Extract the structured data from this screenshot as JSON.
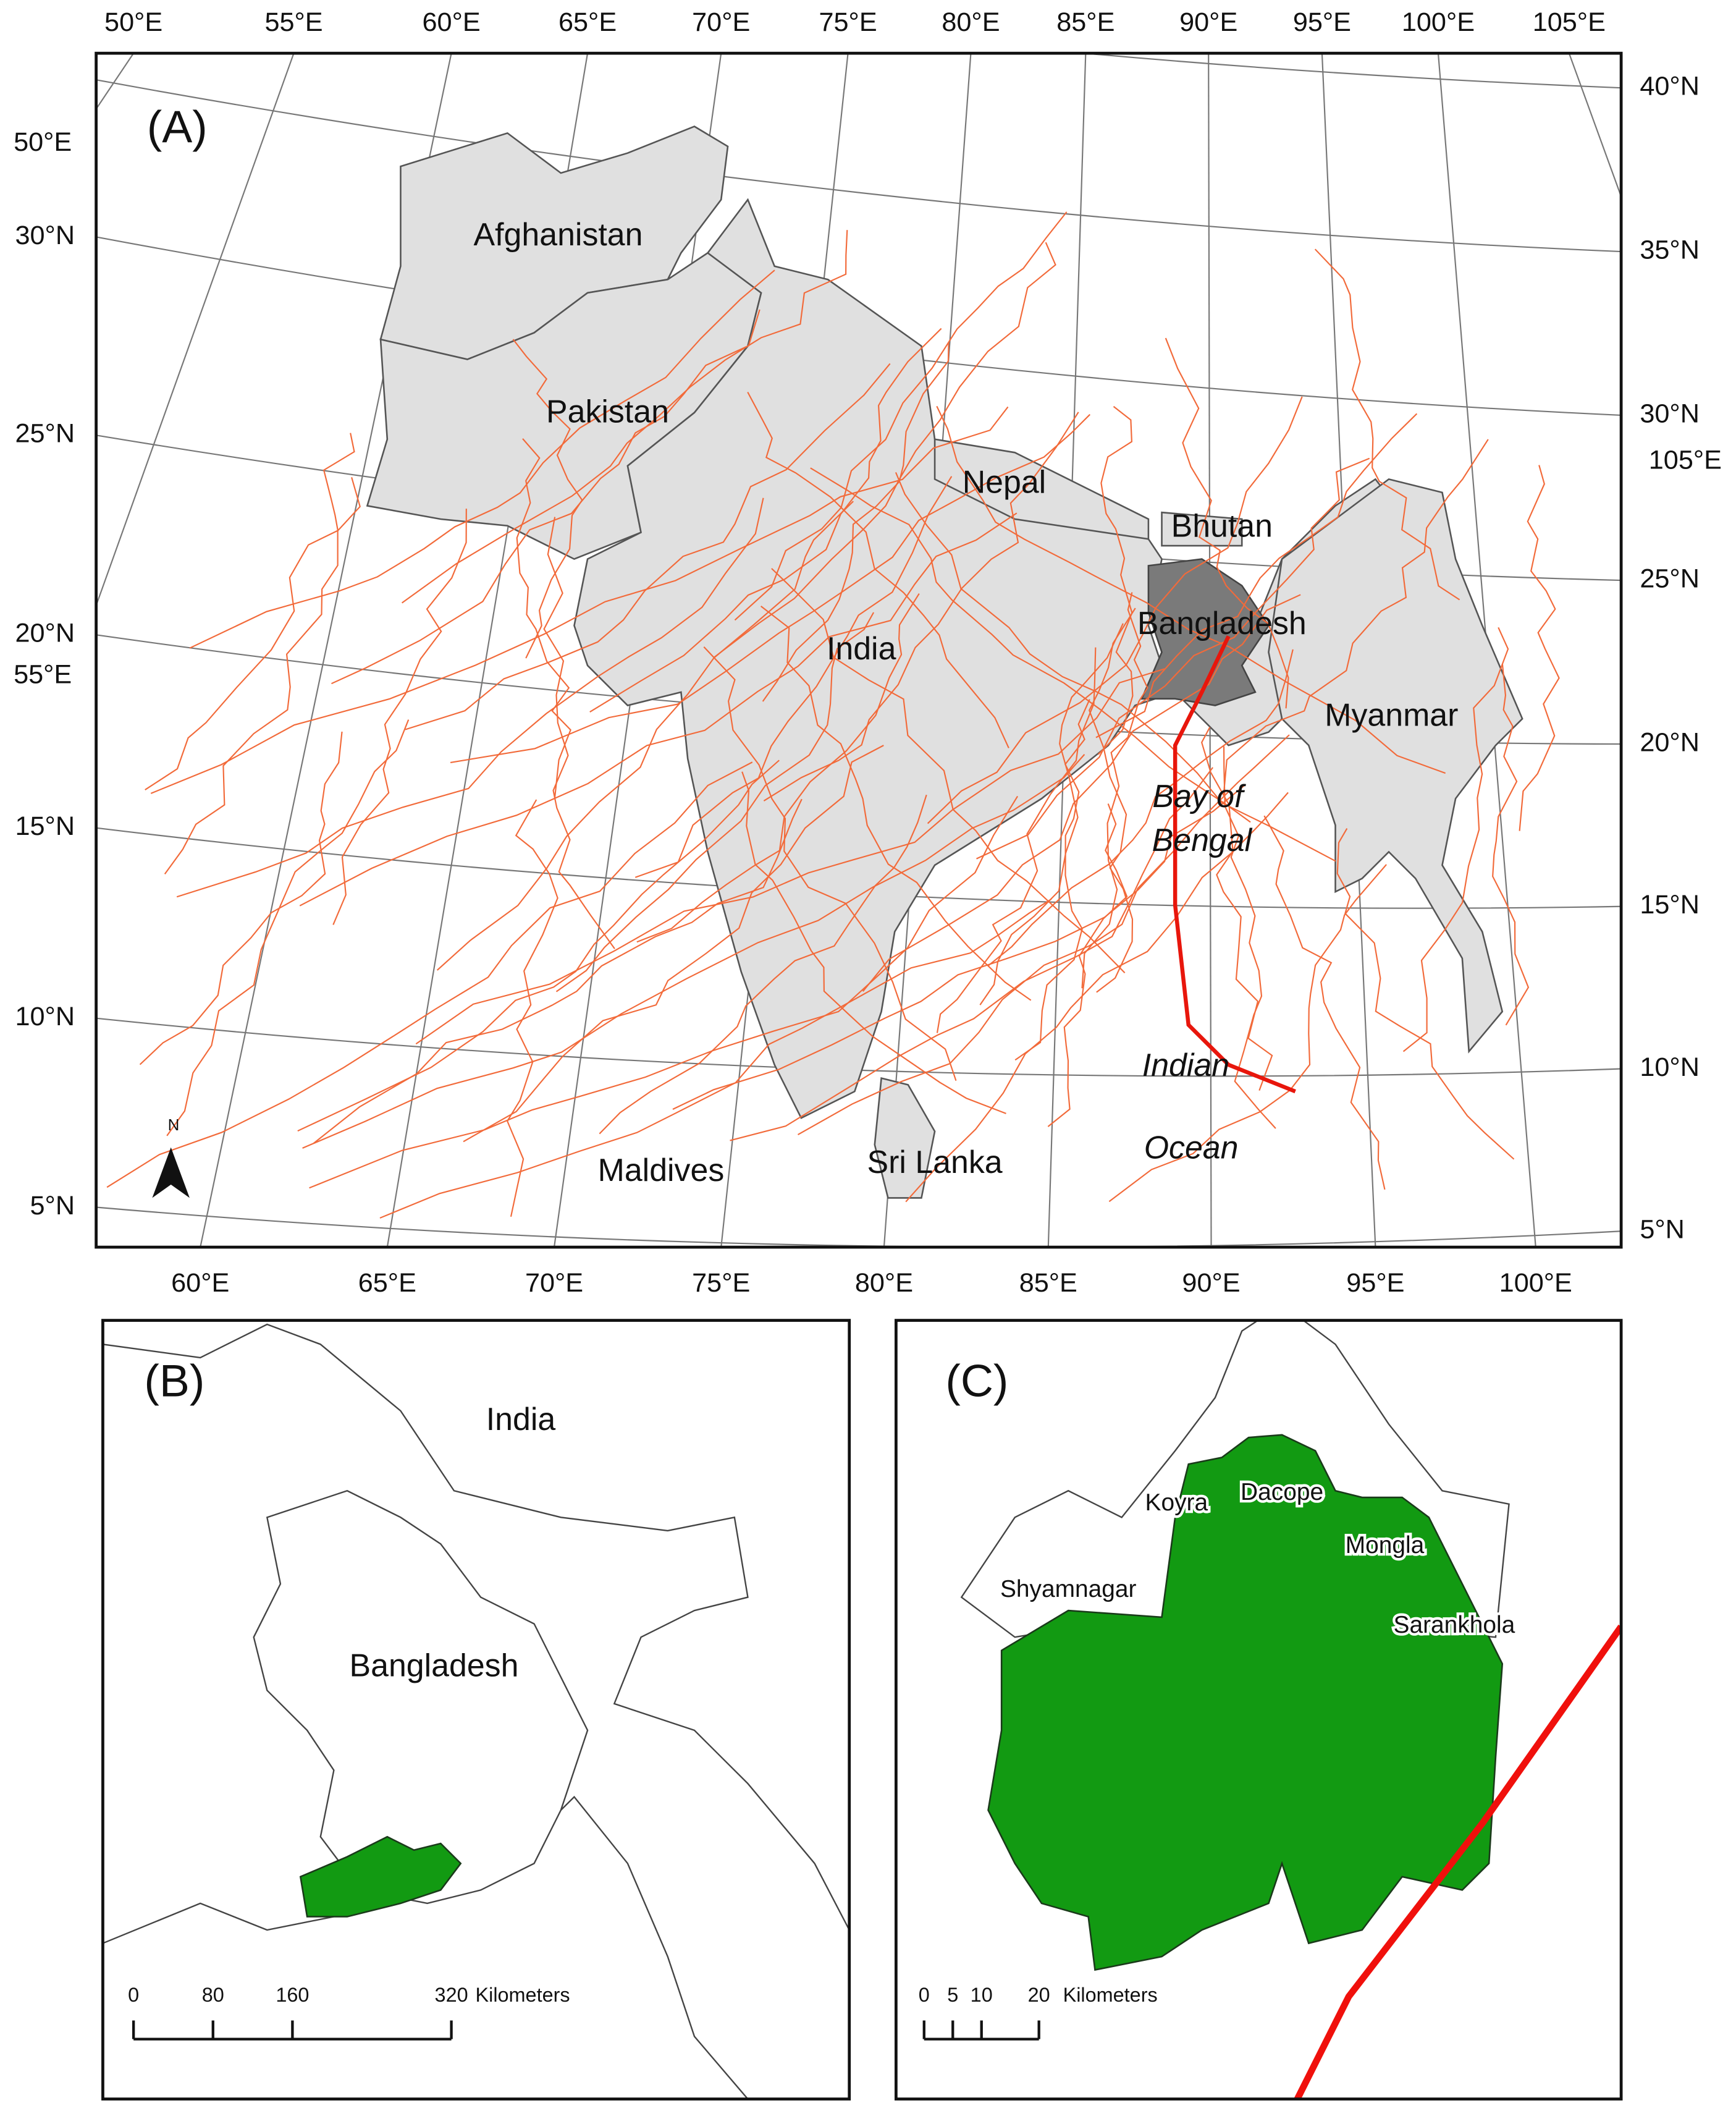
{
  "panel_a": {
    "label": "(A)",
    "top_lon_labels": [
      "50°E",
      "55°E",
      "60°E",
      "65°E",
      "70°E",
      "75°E",
      "80°E",
      "85°E",
      "90°E",
      "95°E",
      "100°E",
      "105°E"
    ],
    "bottom_lon_labels": [
      "60°E",
      "65°E",
      "70°E",
      "75°E",
      "80°E",
      "85°E",
      "90°E",
      "95°E",
      "100°E"
    ],
    "left_lat_labels": [
      "30°N",
      "25°N",
      "20°N",
      "15°N",
      "10°N",
      "5°N"
    ],
    "right_lat_labels": [
      "40°N",
      "35°N",
      "30°N",
      "25°N",
      "20°N",
      "15°N",
      "10°N",
      "5°N"
    ],
    "side_lon_labels": [
      "50°E",
      "55°E",
      "105°E"
    ],
    "places": [
      "Afghanistan",
      "Pakistan",
      "Nepal",
      "Bhutan",
      "Bangladesh",
      "India",
      "Myanmar",
      "Maldives",
      "Sri Lanka"
    ],
    "water": [
      "Bay of",
      "Bengal",
      "Indian",
      "Ocean"
    ],
    "north_label": "N"
  },
  "panel_b": {
    "label": "(B)",
    "places": [
      "India",
      "Bangladesh"
    ],
    "scale_bar": {
      "ticks": [
        0,
        80,
        160,
        320
      ],
      "unit": "Kilometers"
    }
  },
  "panel_c": {
    "label": "(C)",
    "places": [
      "Koyra",
      "Dacope",
      "Mongla",
      "Shyamnagar",
      "Sarankhola"
    ],
    "scale_bar": {
      "ticks": [
        0,
        5,
        10,
        20
      ],
      "unit": "Kilometers"
    }
  }
}
